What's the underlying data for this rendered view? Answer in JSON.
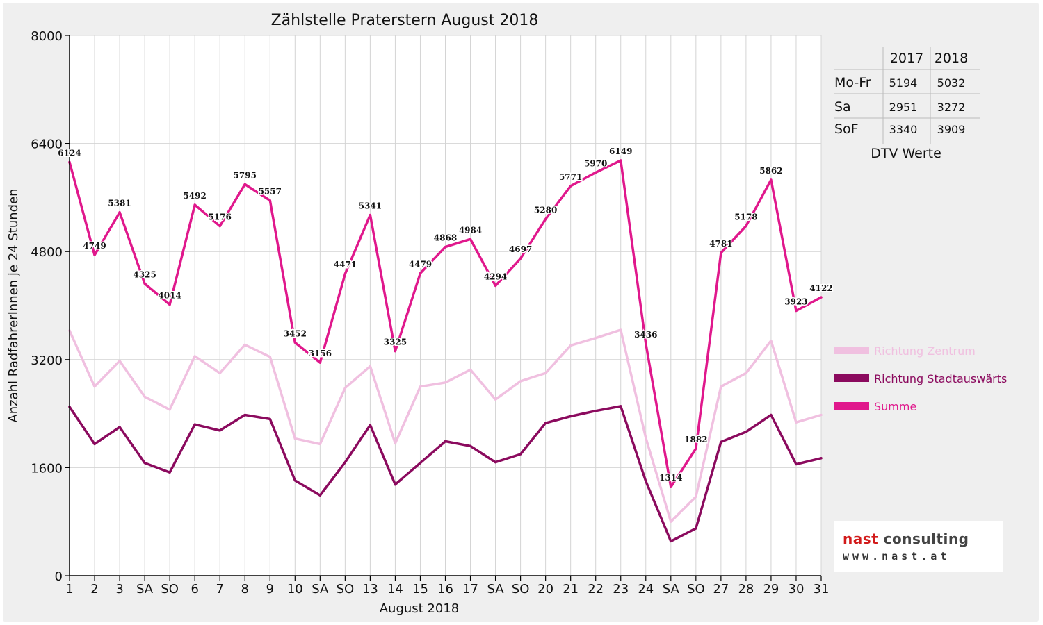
{
  "chart_data": {
    "type": "line",
    "title": "Zählstelle Praterstern August 2018",
    "xlabel": "August 2018",
    "ylabel": "Anzahl RadfahrerInnen je 24 Stunden",
    "ylim": [
      0,
      8000
    ],
    "yticks": [
      0,
      1600,
      3200,
      4800,
      6400,
      8000
    ],
    "grid": true,
    "legend_position": "right",
    "categories": [
      "1",
      "2",
      "3",
      "SA",
      "SO",
      "6",
      "7",
      "8",
      "9",
      "10",
      "SA",
      "SO",
      "13",
      "14",
      "15",
      "16",
      "17",
      "SA",
      "SO",
      "20",
      "21",
      "22",
      "23",
      "24",
      "SA",
      "SO",
      "27",
      "28",
      "29",
      "30",
      "31"
    ],
    "highlight_categories": [
      "SO",
      "15"
    ],
    "highlight_color": "#ff0000",
    "series": [
      {
        "name": "Richtung Zentrum",
        "color": "#f0c0e0",
        "values": [
          3630,
          2800,
          3180,
          2650,
          2460,
          3250,
          3000,
          3420,
          3240,
          2030,
          1950,
          2780,
          3100,
          1960,
          2800,
          2860,
          3050,
          2610,
          2880,
          3000,
          3410,
          3520,
          3640,
          2040,
          800,
          1170,
          2800,
          3000,
          3480,
          2270,
          2380
        ]
      },
      {
        "name": "Richtung Stadtauswärts",
        "color": "#8b0a5e",
        "values": [
          2500,
          1950,
          2200,
          1670,
          1530,
          2240,
          2150,
          2380,
          2320,
          1410,
          1190,
          1680,
          2230,
          1350,
          1670,
          1990,
          1920,
          1680,
          1800,
          2260,
          2360,
          2440,
          2510,
          1400,
          510,
          700,
          1980,
          2130,
          2380,
          1650,
          1740
        ]
      },
      {
        "name": "Summe",
        "color": "#e0188c",
        "values": [
          6124,
          4749,
          5381,
          4325,
          4014,
          5492,
          5176,
          5795,
          5557,
          3452,
          3156,
          4471,
          5341,
          3325,
          4479,
          4868,
          4984,
          4294,
          4697,
          5280,
          5771,
          5970,
          6149,
          3436,
          1314,
          1882,
          4781,
          5178,
          5862,
          3923,
          4122
        ],
        "labels": [
          "6124",
          "4749",
          "5381",
          "4325",
          "4014",
          "5492",
          "5176",
          "5795",
          "5557",
          "3452",
          "3156",
          "4471",
          "5341",
          "3325",
          "4479",
          "4868",
          "4984",
          "4294",
          "4697",
          "5280",
          "5771",
          "5970",
          "6149",
          "3436",
          "1314",
          "1882",
          "4781",
          "5178",
          "5862",
          "3923",
          "4122"
        ]
      }
    ]
  },
  "dtv_table": {
    "columns": [
      "",
      "2017",
      "2018"
    ],
    "rows": [
      {
        "label": "Mo-Fr",
        "v2017": "5194",
        "v2018": "5032"
      },
      {
        "label": "Sa",
        "v2017": "2951",
        "v2018": "3272"
      },
      {
        "label": "SoF",
        "v2017": "3340",
        "v2018": "3909"
      }
    ],
    "caption": "DTV Werte"
  },
  "logo": {
    "line1_accent": "nast",
    "line1_rest": " consulting",
    "line2": "www.nast.at"
  }
}
